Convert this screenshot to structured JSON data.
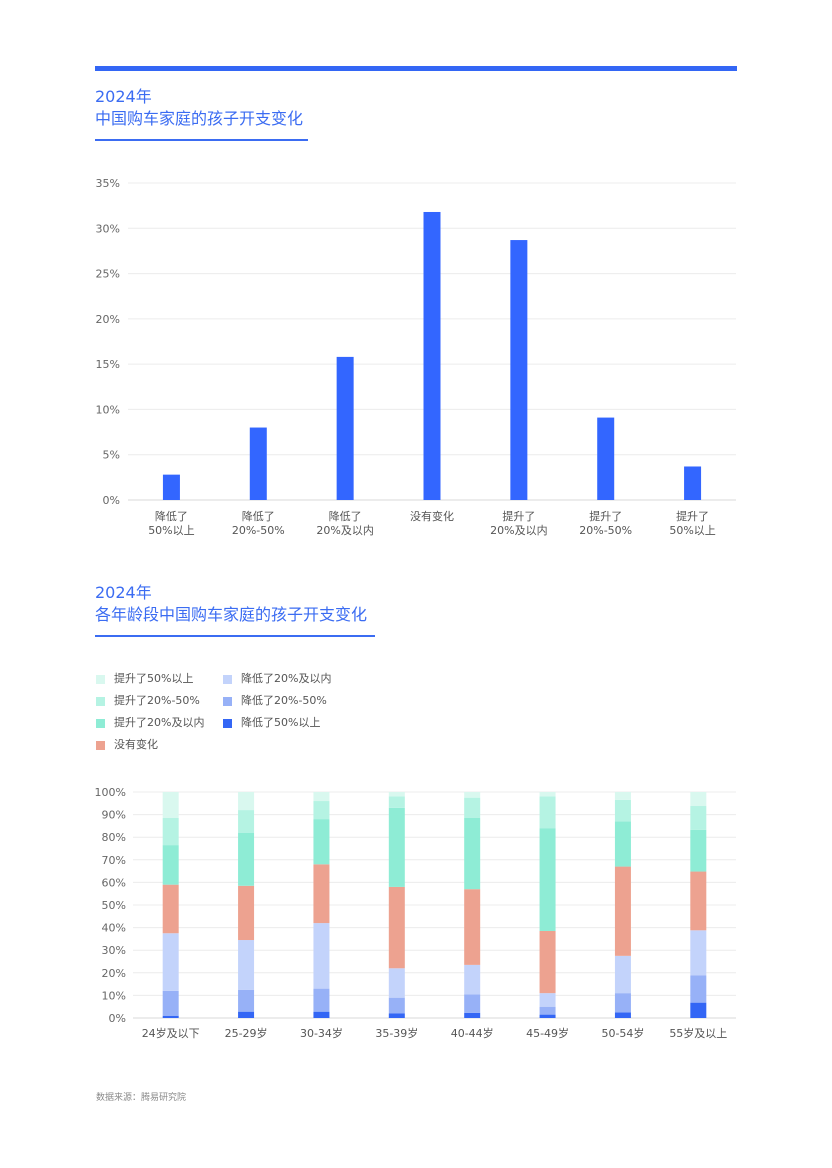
{
  "chart1_title": {
    "line1": "2024年",
    "line2": "中国购车家庭的孩子开支变化"
  },
  "chart2_title": {
    "line1": "2024年",
    "line2": "各年龄段中国购车家庭的孩子开支变化"
  },
  "source": "数据来源：腾易研究院",
  "chart_data": [
    {
      "type": "bar",
      "categories": [
        [
          "降低了",
          "50%以上"
        ],
        [
          "降低了",
          "20%-50%"
        ],
        [
          "降低了",
          "20%及以内"
        ],
        [
          "没有变化"
        ],
        [
          "提升了",
          "20%及以内"
        ],
        [
          "提升了",
          "20%-50%"
        ],
        [
          "提升了",
          "50%以上"
        ]
      ],
      "values": [
        2.8,
        8.0,
        15.8,
        31.8,
        28.7,
        9.1,
        3.7
      ],
      "ylim": [
        0,
        35
      ],
      "yticks": [
        "0%",
        "5%",
        "10%",
        "15%",
        "20%",
        "25%",
        "30%",
        "35%"
      ],
      "grid": true,
      "color": "#3366ff"
    },
    {
      "type": "bar",
      "stacked": true,
      "categories": [
        "24岁及以下",
        "25-29岁",
        "30-34岁",
        "35-39岁",
        "40-44岁",
        "45-49岁",
        "50-54岁",
        "55岁及以上"
      ],
      "ylim": [
        0,
        100
      ],
      "yticks": [
        "0%",
        "10%",
        "20%",
        "30%",
        "40%",
        "50%",
        "60%",
        "70%",
        "80%",
        "90%",
        "100%"
      ],
      "grid": true,
      "series": [
        {
          "name": "降低了50%以上",
          "color": "#3366f5",
          "values": [
            1.0,
            2.8,
            2.8,
            2.0,
            2.3,
            1.5,
            2.5,
            6.8
          ]
        },
        {
          "name": "降低了20%-50%",
          "color": "#97b1f7",
          "values": [
            11.0,
            9.7,
            10.2,
            7.0,
            8.2,
            3.5,
            8.5,
            12.0
          ]
        },
        {
          "name": "降低了20%及以内",
          "color": "#c3d3fb",
          "values": [
            25.5,
            22.0,
            29.0,
            13.0,
            13.0,
            6.0,
            16.5,
            20.0
          ]
        },
        {
          "name": "没有变化",
          "color": "#eda290",
          "values": [
            21.5,
            24.0,
            26.0,
            36.0,
            33.5,
            27.5,
            39.5,
            26.0
          ]
        },
        {
          "name": "提升了20%及以内",
          "color": "#8eecd5",
          "values": [
            17.5,
            23.5,
            20.0,
            35.0,
            31.5,
            45.5,
            20.0,
            18.5
          ]
        },
        {
          "name": "提升了20%-50%",
          "color": "#b5f3e3",
          "values": [
            12.0,
            10.0,
            8.0,
            5.0,
            9.0,
            14.0,
            9.5,
            10.5
          ]
        },
        {
          "name": "提升了50%以上",
          "color": "#d9f8ef",
          "values": [
            11.5,
            8.0,
            4.0,
            2.0,
            2.5,
            2.0,
            3.5,
            6.2
          ]
        }
      ],
      "legend_order": [
        "提升了50%以上",
        "降低了20%及以内",
        "提升了20%-50%",
        "降低了20%-50%",
        "提升了20%及以内",
        "降低了50%以上",
        "没有变化"
      ]
    }
  ]
}
